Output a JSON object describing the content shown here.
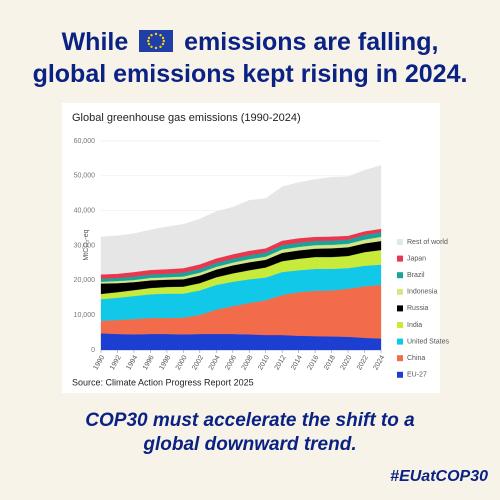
{
  "header": {
    "title_part1": "While",
    "title_part2": "emissions are falling,",
    "title_line2": "global emissions kept rising in 2024."
  },
  "chart_data": {
    "type": "stacked-area",
    "title": "Global greenhouse gas emissions (1990-2024)",
    "y_label": "MtCO₂-eq",
    "source": "Source: Climate Action Progress Report 2025",
    "x": [
      1990,
      1992,
      1994,
      1996,
      1998,
      2000,
      2002,
      2004,
      2006,
      2008,
      2010,
      2012,
      2014,
      2016,
      2018,
      2020,
      2022,
      2024
    ],
    "xlim": [
      1990,
      2024
    ],
    "xticks": [
      1990,
      1992,
      1994,
      1996,
      1998,
      2000,
      2002,
      2004,
      2006,
      2008,
      2010,
      2012,
      2014,
      2016,
      2018,
      2020,
      2022,
      2024
    ],
    "ylim": [
      0,
      60000
    ],
    "yticks": [
      0,
      {
        "value": 10000,
        "label": "10,000"
      },
      {
        "value": 20000,
        "label": "20,000"
      },
      {
        "value": 30000,
        "label": "30,000"
      },
      {
        "value": 40000,
        "label": "40,000"
      },
      {
        "value": 50000,
        "label": "50,000"
      },
      {
        "value": 60000,
        "label": "60,000"
      }
    ],
    "series": [
      {
        "name": "EU-27",
        "color": "#1c3fd1",
        "values": [
          4800,
          4600,
          4500,
          4600,
          4600,
          4500,
          4600,
          4600,
          4600,
          4500,
          4300,
          4300,
          4100,
          4000,
          3900,
          3800,
          3500,
          3300
        ]
      },
      {
        "name": "China",
        "color": "#f26b4a",
        "values": [
          3600,
          4000,
          4400,
          4600,
          4600,
          4800,
          5500,
          7000,
          8000,
          9000,
          10000,
          11500,
          12500,
          13000,
          13200,
          13800,
          14800,
          15400
        ]
      },
      {
        "name": "United States",
        "color": "#12c8e8",
        "values": [
          6200,
          6400,
          6600,
          6800,
          7000,
          6900,
          7000,
          7100,
          7000,
          6800,
          6500,
          6600,
          6300,
          6300,
          6200,
          5900,
          5900,
          5800
        ]
      },
      {
        "name": "India",
        "color": "#c8ea3a",
        "values": [
          1500,
          1600,
          1700,
          1800,
          1900,
          2000,
          2100,
          2200,
          2400,
          2600,
          2900,
          3100,
          3300,
          3400,
          3400,
          3500,
          3900,
          4200
        ]
      },
      {
        "name": "Russia",
        "color": "#000000",
        "values": [
          3000,
          2600,
          2300,
          2200,
          2100,
          2100,
          2200,
          2200,
          2300,
          2300,
          2200,
          2400,
          2400,
          2400,
          2500,
          2500,
          2500,
          2600
        ]
      },
      {
        "name": "Indonesia",
        "color": "#d4e88a",
        "values": [
          500,
          600,
          600,
          700,
          700,
          800,
          800,
          800,
          800,
          900,
          900,
          1000,
          1000,
          1000,
          1000,
          1000,
          1100,
          1200
        ]
      },
      {
        "name": "Brazil",
        "color": "#1aa39b",
        "values": [
          900,
          900,
          1000,
          1000,
          1000,
          1100,
          1100,
          1100,
          1100,
          1100,
          1200,
          1200,
          1200,
          1200,
          1200,
          1200,
          1300,
          1300
        ]
      },
      {
        "name": "Japan",
        "color": "#e8374f",
        "values": [
          1200,
          1200,
          1300,
          1300,
          1300,
          1300,
          1300,
          1300,
          1300,
          1300,
          1200,
          1300,
          1300,
          1200,
          1200,
          1100,
          1100,
          1000
        ]
      },
      {
        "name": "Rest of world",
        "color": "#e6e6e6",
        "values": [
          10800,
          10900,
          11000,
          11500,
          12200,
          12600,
          13000,
          13500,
          13500,
          14500,
          14300,
          15500,
          16000,
          16500,
          17000,
          17000,
          17500,
          18200
        ]
      }
    ]
  },
  "footer": {
    "message_line1": "COP30 must accelerate the shift to a",
    "message_line2": "global downward trend.",
    "hashtag": "#EUatCOP30"
  }
}
